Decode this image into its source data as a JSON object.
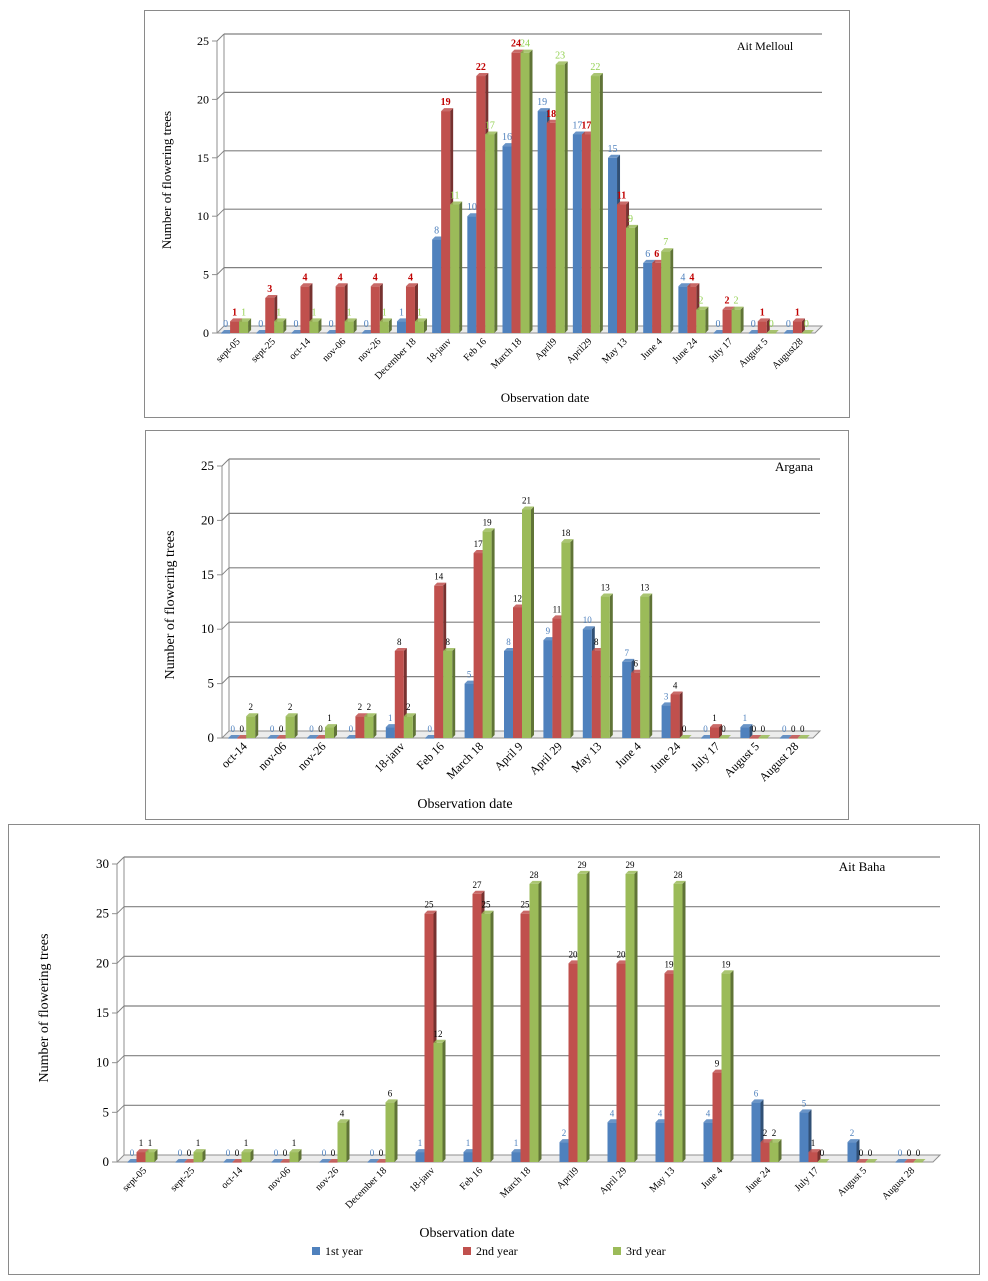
{
  "colors": {
    "s1": "#4f81bd",
    "s2": "#c0504d",
    "s3": "#9bbb59",
    "grid": "#808080",
    "axis": "#8f8f8f"
  },
  "legend": {
    "items": [
      "1st year",
      "2nd year",
      "3rd year"
    ]
  },
  "chart_data": [
    {
      "type": "bar",
      "title": "Ait Melloul",
      "xlabel": "Observation date",
      "ylabel": "Number of flowering trees",
      "ylim": [
        0,
        25
      ],
      "yticks": [
        0,
        5,
        10,
        15,
        20,
        25
      ],
      "grid": true,
      "categories": [
        "sept-05",
        "sept-25",
        "oct-14",
        "nov-06",
        "nov-26",
        "December 18",
        "18-janv",
        "Feb 16",
        "March 18",
        "April9",
        "April29",
        "May 13",
        "June 4",
        "June 24",
        "July 17",
        "August 5",
        "August28"
      ],
      "series": [
        {
          "name": "1st year",
          "values": [
            0,
            0,
            0,
            0,
            0,
            1,
            8,
            10,
            16,
            19,
            17,
            15,
            6,
            4,
            0,
            0,
            0
          ]
        },
        {
          "name": "2nd year",
          "values": [
            1,
            3,
            4,
            4,
            4,
            4,
            19,
            22,
            24,
            18,
            17,
            11,
            6,
            4,
            2,
            1,
            1
          ]
        },
        {
          "name": "3rd year",
          "values": [
            1,
            1,
            1,
            1,
            1,
            1,
            11,
            17,
            24,
            23,
            22,
            9,
            7,
            2,
            2,
            0,
            0
          ]
        }
      ]
    },
    {
      "type": "bar",
      "title": "Argana",
      "xlabel": "Observation date",
      "ylabel": "Number of flowering trees",
      "ylim": [
        0,
        25
      ],
      "yticks": [
        0,
        5,
        10,
        15,
        20,
        25
      ],
      "grid": true,
      "categories": [
        "oct-14",
        "nov-06",
        "nov-26",
        "",
        "18-janv",
        "Feb 16",
        "March 18",
        "April 9",
        "April 29",
        "May 13",
        "June 4",
        "June 24",
        "July 17",
        "August 5",
        "August 28"
      ],
      "series": [
        {
          "name": "1st year",
          "values": [
            0,
            0,
            0,
            0,
            1,
            0,
            5,
            8,
            9,
            10,
            7,
            3,
            0,
            1,
            0
          ]
        },
        {
          "name": "2nd year",
          "values": [
            0,
            0,
            0,
            2,
            8,
            14,
            17,
            12,
            11,
            8,
            6,
            4,
            1,
            0,
            0
          ]
        },
        {
          "name": "3rd year",
          "values": [
            2,
            2,
            1,
            2,
            2,
            8,
            19,
            21,
            18,
            13,
            13,
            0,
            0,
            0,
            0
          ]
        }
      ]
    },
    {
      "type": "bar",
      "title": "Ait Baha",
      "xlabel": "Observation date",
      "ylabel": "Number of flowering trees",
      "ylim": [
        0,
        30
      ],
      "yticks": [
        0,
        5,
        10,
        15,
        20,
        25,
        30
      ],
      "grid": true,
      "legend": "bottom",
      "categories": [
        "sept-05",
        "sept-25",
        "oct-14",
        "nov-06",
        "nov-26",
        "December 18",
        "18-janv",
        "Feb 16",
        "March 18",
        "April9",
        "April 29",
        "May 13",
        "June 4",
        "June 24",
        "July 17",
        "August 5",
        "August 28"
      ],
      "series": [
        {
          "name": "1st year",
          "values": [
            0,
            0,
            0,
            0,
            0,
            0,
            1,
            1,
            1,
            2,
            4,
            4,
            4,
            6,
            5,
            2,
            0
          ]
        },
        {
          "name": "2nd year",
          "values": [
            1,
            0,
            0,
            0,
            0,
            0,
            25,
            27,
            25,
            20,
            20,
            19,
            9,
            2,
            1,
            0,
            0
          ]
        },
        {
          "name": "3rd year",
          "values": [
            1,
            1,
            1,
            1,
            4,
            6,
            12,
            25,
            28,
            29,
            29,
            28,
            19,
            2,
            0,
            0,
            0
          ]
        }
      ]
    }
  ]
}
